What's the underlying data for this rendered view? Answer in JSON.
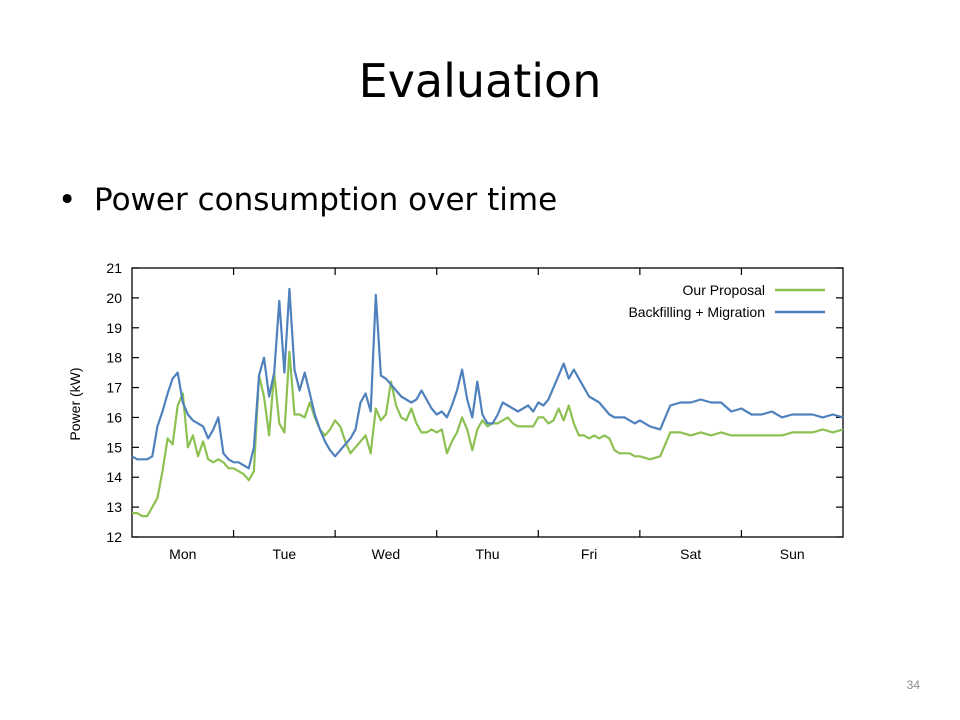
{
  "slide": {
    "title": "Evaluation",
    "bullet": "Power consumption over time",
    "page_number": "34"
  },
  "chart_data": {
    "type": "line",
    "title": "",
    "xlabel": "",
    "ylabel": "Power (kW)",
    "ylim": [
      12,
      21
    ],
    "xlim": [
      0,
      7
    ],
    "yticks": [
      12,
      13,
      14,
      15,
      16,
      17,
      18,
      19,
      20,
      21
    ],
    "x_categories": [
      "Mon",
      "Tue",
      "Wed",
      "Thu",
      "Fri",
      "Sat",
      "Sun"
    ],
    "grid": false,
    "legend_position": "top-right",
    "series": [
      {
        "name": "Our Proposal",
        "color": "#8cc152",
        "x": [
          0,
          0.05,
          0.1,
          0.15,
          0.2,
          0.25,
          0.3,
          0.35,
          0.4,
          0.45,
          0.5,
          0.55,
          0.6,
          0.65,
          0.7,
          0.75,
          0.8,
          0.85,
          0.9,
          0.95,
          1.0,
          1.05,
          1.1,
          1.15,
          1.2,
          1.25,
          1.3,
          1.35,
          1.4,
          1.45,
          1.5,
          1.55,
          1.6,
          1.65,
          1.7,
          1.75,
          1.8,
          1.85,
          1.9,
          1.95,
          2.0,
          2.05,
          2.1,
          2.15,
          2.2,
          2.25,
          2.3,
          2.35,
          2.4,
          2.45,
          2.5,
          2.55,
          2.6,
          2.65,
          2.7,
          2.75,
          2.8,
          2.85,
          2.9,
          2.95,
          3.0,
          3.05,
          3.1,
          3.15,
          3.2,
          3.25,
          3.3,
          3.35,
          3.4,
          3.45,
          3.5,
          3.55,
          3.6,
          3.65,
          3.7,
          3.75,
          3.8,
          3.85,
          3.9,
          3.95,
          4.0,
          4.05,
          4.1,
          4.15,
          4.2,
          4.25,
          4.3,
          4.35,
          4.4,
          4.45,
          4.5,
          4.55,
          4.6,
          4.65,
          4.7,
          4.75,
          4.8,
          4.85,
          4.9,
          4.95,
          5.0,
          5.1,
          5.2,
          5.3,
          5.4,
          5.5,
          5.6,
          5.7,
          5.8,
          5.9,
          6.0,
          6.1,
          6.2,
          6.3,
          6.4,
          6.5,
          6.6,
          6.7,
          6.8,
          6.9,
          7.0
        ],
        "y": [
          12.8,
          12.8,
          12.7,
          12.7,
          13.0,
          13.3,
          14.2,
          15.3,
          15.1,
          16.4,
          16.8,
          15.0,
          15.4,
          14.7,
          15.2,
          14.6,
          14.5,
          14.6,
          14.5,
          14.3,
          14.3,
          14.2,
          14.1,
          13.9,
          14.2,
          17.4,
          16.7,
          15.4,
          17.5,
          15.8,
          15.5,
          18.2,
          16.1,
          16.1,
          16.0,
          16.5,
          16.0,
          15.6,
          15.4,
          15.6,
          15.9,
          15.7,
          15.2,
          14.8,
          15.0,
          15.2,
          15.4,
          14.8,
          16.3,
          15.9,
          16.1,
          17.2,
          16.4,
          16.0,
          15.9,
          16.3,
          15.8,
          15.5,
          15.5,
          15.6,
          15.5,
          15.6,
          14.8,
          15.2,
          15.5,
          16.0,
          15.6,
          14.9,
          15.6,
          15.9,
          15.7,
          15.8,
          15.8,
          15.9,
          16.0,
          15.8,
          15.7,
          15.7,
          15.7,
          15.7,
          16.0,
          16.0,
          15.8,
          15.9,
          16.3,
          15.9,
          16.4,
          15.8,
          15.4,
          15.4,
          15.3,
          15.4,
          15.3,
          15.4,
          15.3,
          14.9,
          14.8,
          14.8,
          14.8,
          14.7,
          14.7,
          14.6,
          14.7,
          15.5,
          15.5,
          15.4,
          15.5,
          15.4,
          15.5,
          15.4,
          15.4,
          15.4,
          15.4,
          15.4,
          15.4,
          15.5,
          15.5,
          15.5,
          15.6,
          15.5,
          15.6
        ]
      },
      {
        "name": "Backfilling + Migration",
        "color": "#4f81bd",
        "x": [
          0,
          0.05,
          0.1,
          0.15,
          0.2,
          0.25,
          0.3,
          0.35,
          0.4,
          0.45,
          0.5,
          0.55,
          0.6,
          0.65,
          0.7,
          0.75,
          0.8,
          0.85,
          0.9,
          0.95,
          1.0,
          1.05,
          1.1,
          1.15,
          1.2,
          1.25,
          1.3,
          1.35,
          1.4,
          1.45,
          1.5,
          1.55,
          1.6,
          1.65,
          1.7,
          1.75,
          1.8,
          1.85,
          1.9,
          1.95,
          2.0,
          2.05,
          2.1,
          2.15,
          2.2,
          2.25,
          2.3,
          2.35,
          2.4,
          2.45,
          2.5,
          2.55,
          2.6,
          2.65,
          2.7,
          2.75,
          2.8,
          2.85,
          2.9,
          2.95,
          3.0,
          3.05,
          3.1,
          3.15,
          3.2,
          3.25,
          3.3,
          3.35,
          3.4,
          3.45,
          3.5,
          3.55,
          3.6,
          3.65,
          3.7,
          3.75,
          3.8,
          3.85,
          3.9,
          3.95,
          4.0,
          4.05,
          4.1,
          4.15,
          4.2,
          4.25,
          4.3,
          4.35,
          4.4,
          4.45,
          4.5,
          4.55,
          4.6,
          4.65,
          4.7,
          4.75,
          4.8,
          4.85,
          4.9,
          4.95,
          5.0,
          5.1,
          5.2,
          5.3,
          5.4,
          5.5,
          5.6,
          5.7,
          5.8,
          5.9,
          6.0,
          6.1,
          6.2,
          6.3,
          6.4,
          6.5,
          6.6,
          6.7,
          6.8,
          6.9,
          7.0
        ],
        "y": [
          14.7,
          14.6,
          14.6,
          14.6,
          14.7,
          15.7,
          16.2,
          16.8,
          17.3,
          17.5,
          16.5,
          16.1,
          15.9,
          15.8,
          15.7,
          15.3,
          15.6,
          16.0,
          14.8,
          14.6,
          14.5,
          14.5,
          14.4,
          14.3,
          15.0,
          17.4,
          18.0,
          16.7,
          17.5,
          19.9,
          17.5,
          20.3,
          17.6,
          16.9,
          17.5,
          16.8,
          16.1,
          15.6,
          15.2,
          14.9,
          14.7,
          14.9,
          15.1,
          15.3,
          15.6,
          16.5,
          16.8,
          16.2,
          20.1,
          17.4,
          17.3,
          17.1,
          16.9,
          16.7,
          16.6,
          16.5,
          16.6,
          16.9,
          16.6,
          16.3,
          16.1,
          16.2,
          16.0,
          16.4,
          16.9,
          17.6,
          16.6,
          16.0,
          17.2,
          16.1,
          15.8,
          15.8,
          16.1,
          16.5,
          16.4,
          16.3,
          16.2,
          16.3,
          16.4,
          16.2,
          16.5,
          16.4,
          16.6,
          17.0,
          17.4,
          17.8,
          17.3,
          17.6,
          17.3,
          17.0,
          16.7,
          16.6,
          16.5,
          16.3,
          16.1,
          16.0,
          16.0,
          16.0,
          15.9,
          15.8,
          15.9,
          15.7,
          15.6,
          16.4,
          16.5,
          16.5,
          16.6,
          16.5,
          16.5,
          16.2,
          16.3,
          16.1,
          16.1,
          16.2,
          16.0,
          16.1,
          16.1,
          16.1,
          16.0,
          16.1,
          16.0
        ]
      }
    ]
  }
}
